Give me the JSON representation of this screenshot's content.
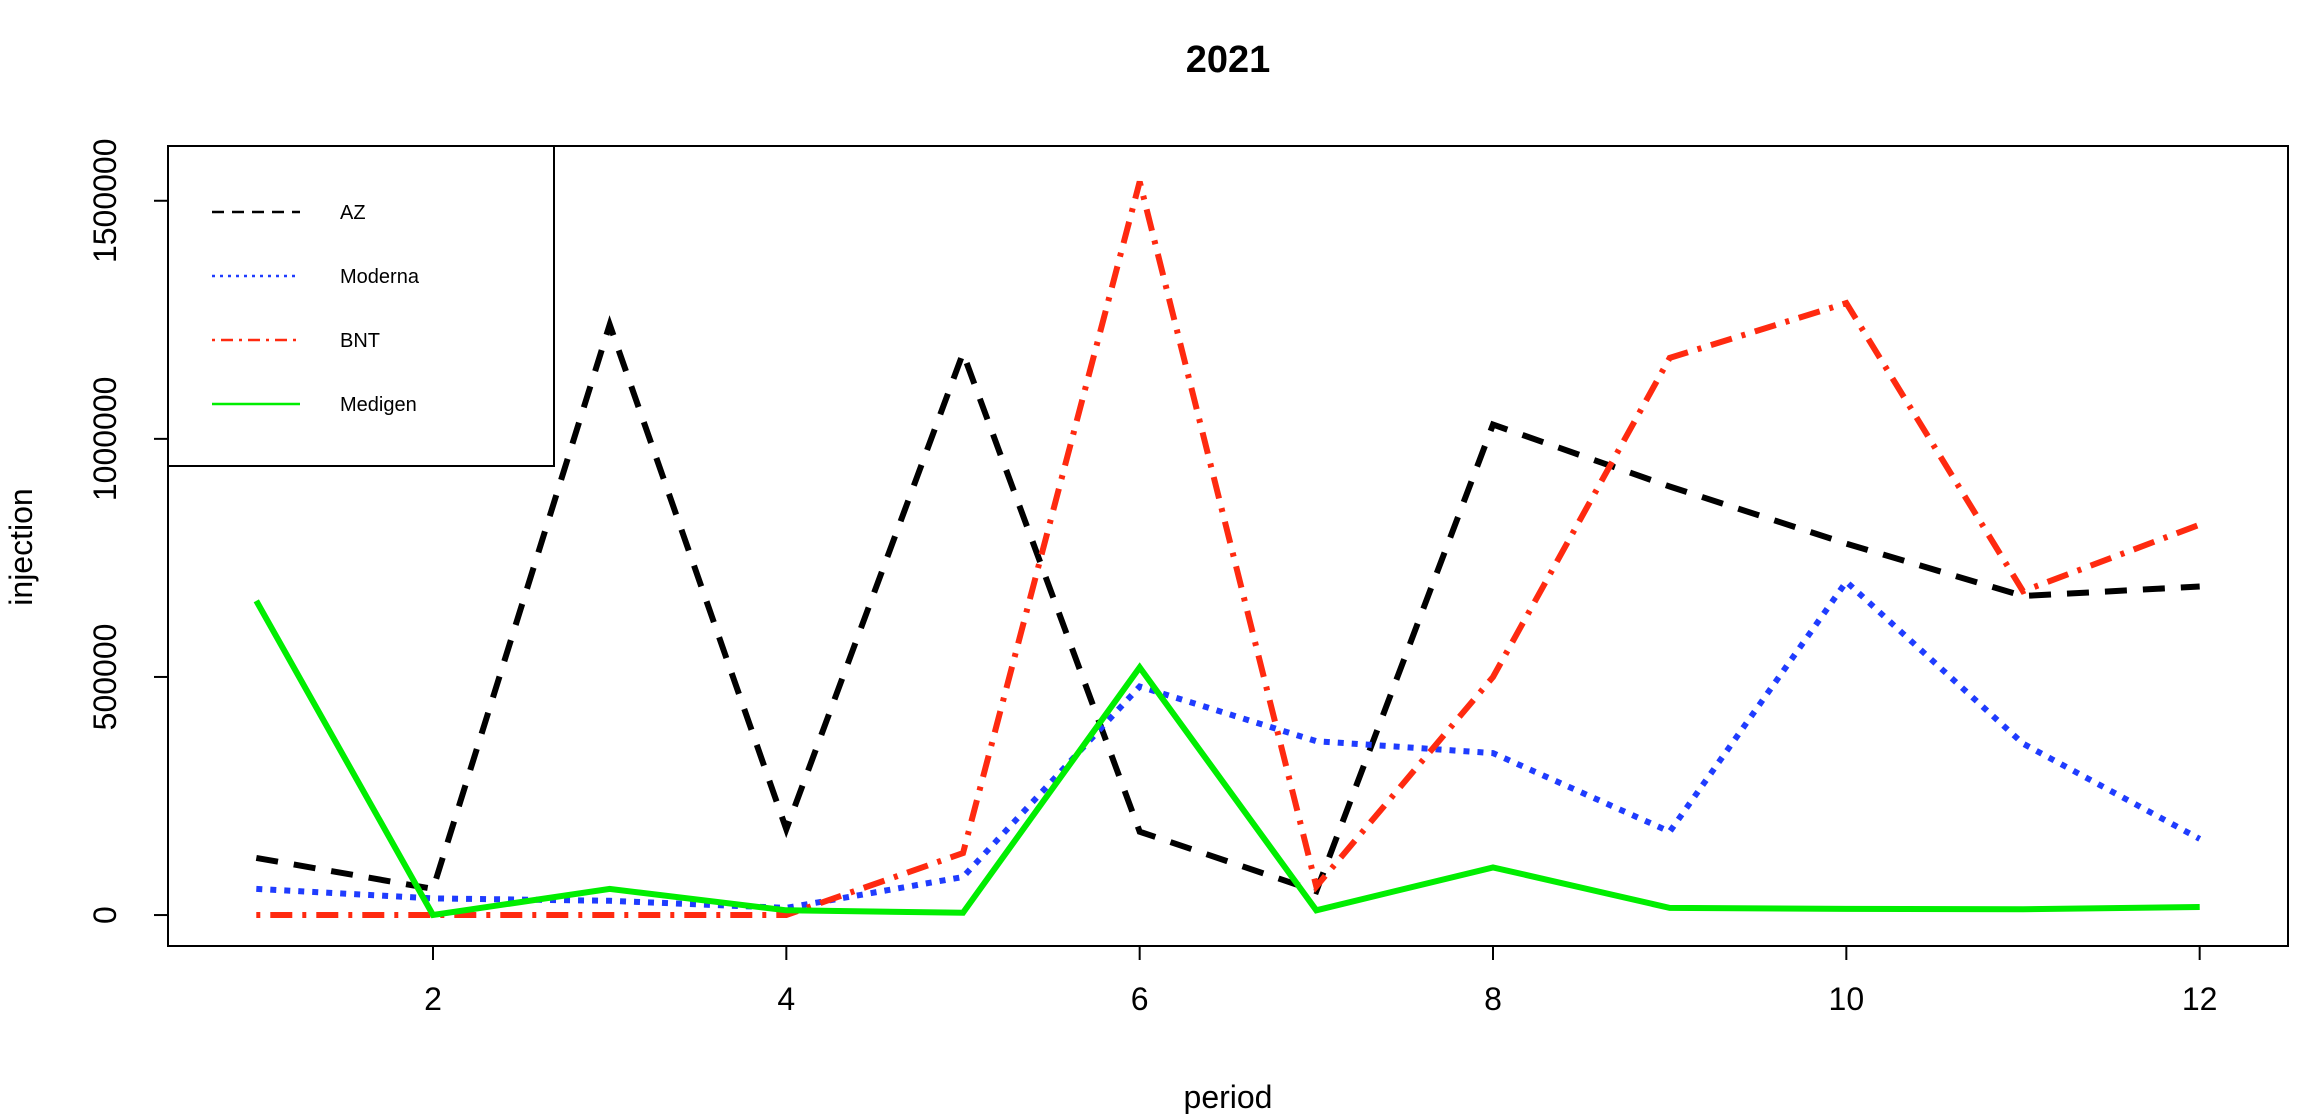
{
  "chart_data": {
    "type": "line",
    "title": "2021",
    "xlabel": "period",
    "ylabel": "injection",
    "x": [
      1,
      2,
      3,
      4,
      5,
      6,
      7,
      8,
      9,
      10,
      11,
      12
    ],
    "xlim": [
      0.5,
      12.5
    ],
    "ylim": [
      -65000,
      1615000
    ],
    "xticks": [
      2,
      4,
      6,
      8,
      10,
      12
    ],
    "yticks": [
      0,
      500000,
      1000000,
      1500000
    ],
    "xtick_labels": [
      "2",
      "4",
      "6",
      "8",
      "10",
      "12"
    ],
    "ytick_labels": [
      "0",
      "500000",
      "1000000",
      "1500000"
    ],
    "grid": false,
    "legend_position": "top-left",
    "series": [
      {
        "name": "AZ",
        "color": "#000000",
        "dash": "dashed",
        "values": [
          120000,
          55000,
          1240000,
          180000,
          1180000,
          175000,
          50000,
          1030000,
          900000,
          780000,
          670000,
          690000
        ]
      },
      {
        "name": "Moderna",
        "color": "#1f3cff",
        "dash": "dotted",
        "values": [
          55000,
          35000,
          30000,
          15000,
          80000,
          480000,
          365000,
          340000,
          175000,
          700000,
          360000,
          160000
        ]
      },
      {
        "name": "BNT",
        "color": "#ff2a10",
        "dash": "dashdot",
        "values": [
          0,
          0,
          0,
          0,
          130000,
          1540000,
          60000,
          500000,
          1170000,
          1285000,
          680000,
          820000
        ]
      },
      {
        "name": "Medigen",
        "color": "#00ee00",
        "dash": "solid",
        "values": [
          660000,
          0,
          55000,
          10000,
          5000,
          520000,
          10000,
          100000,
          15000,
          13000,
          12000,
          17000
        ]
      }
    ]
  }
}
